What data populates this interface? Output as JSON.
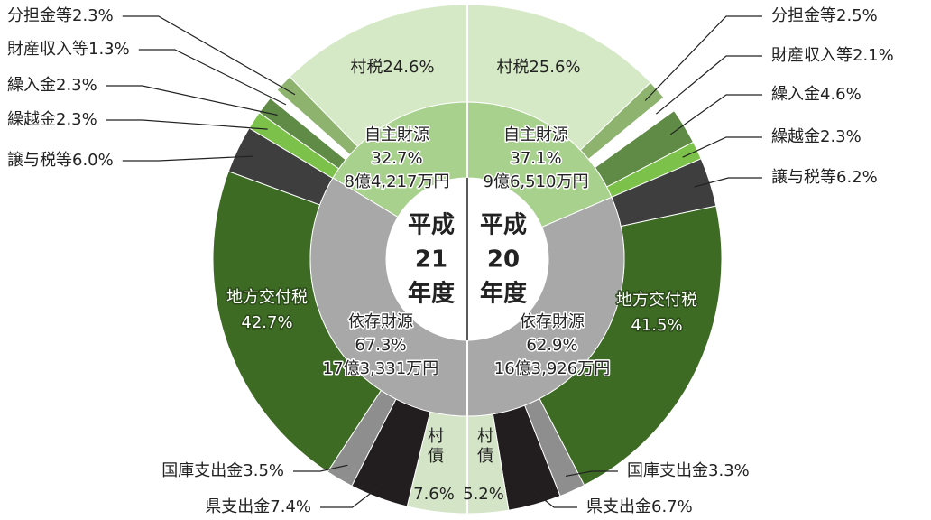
{
  "chart_data": [
    {
      "type": "donut",
      "title": [
        "平成",
        "21",
        "年度"
      ],
      "categories": [
        "村税",
        "分担金等",
        "財産収入等",
        "繰入金",
        "繰越金",
        "譲与税等",
        "地方交付税",
        "国庫支出金",
        "県支出金",
        "村債"
      ],
      "values": [
        24.6,
        2.3,
        1.3,
        2.3,
        2.3,
        6.0,
        42.7,
        3.5,
        7.4,
        7.6
      ],
      "value_labels": [
        "24.6%",
        "2.3%",
        "1.3%",
        "2.3%",
        "2.3%",
        "6.0%",
        "42.7%",
        "3.5%",
        "7.4%",
        "7.6%"
      ],
      "colors": [
        "#d6e9c6",
        "#8db36f",
        "#ffffff",
        "#5f8b47",
        "#7cc24a",
        "#3e3e3e",
        "#3d6b24",
        "#8e8e8e",
        "#221e1f",
        "#d4e4c7"
      ],
      "groups": {
        "categories": [
          "自主財源",
          "依存財源"
        ],
        "values": [
          32.7,
          67.3
        ],
        "value_labels": [
          "32.7%",
          "67.3%"
        ],
        "amounts": [
          "8億4,217万円",
          "17億3,331万円"
        ],
        "colors": [
          "#a9d18e",
          "#a8a8a8"
        ]
      }
    },
    {
      "type": "donut",
      "title": [
        "平成",
        "20",
        "年度"
      ],
      "categories": [
        "村税",
        "分担金等",
        "財産収入等",
        "繰入金",
        "繰越金",
        "譲与税等",
        "地方交付税",
        "国庫支出金",
        "県支出金",
        "村債"
      ],
      "values": [
        25.6,
        2.5,
        2.1,
        4.6,
        2.3,
        6.2,
        41.5,
        3.3,
        6.7,
        5.2
      ],
      "value_labels": [
        "25.6%",
        "2.5%",
        "2.1%",
        "4.6%",
        "2.3%",
        "6.2%",
        "41.5%",
        "3.3%",
        "6.7%",
        "5.2%"
      ],
      "colors": [
        "#d6e9c6",
        "#8db36f",
        "#ffffff",
        "#5f8b47",
        "#7cc24a",
        "#3e3e3e",
        "#3d6b24",
        "#8e8e8e",
        "#221e1f",
        "#d4e4c7"
      ],
      "groups": {
        "categories": [
          "自主財源",
          "依存財源"
        ],
        "values": [
          37.1,
          62.9
        ],
        "value_labels": [
          "37.1%",
          "62.9%"
        ],
        "amounts": [
          "9億6,510万円",
          "16億3,926万円"
        ],
        "colors": [
          "#a9d18e",
          "#a8a8a8"
        ]
      }
    }
  ]
}
